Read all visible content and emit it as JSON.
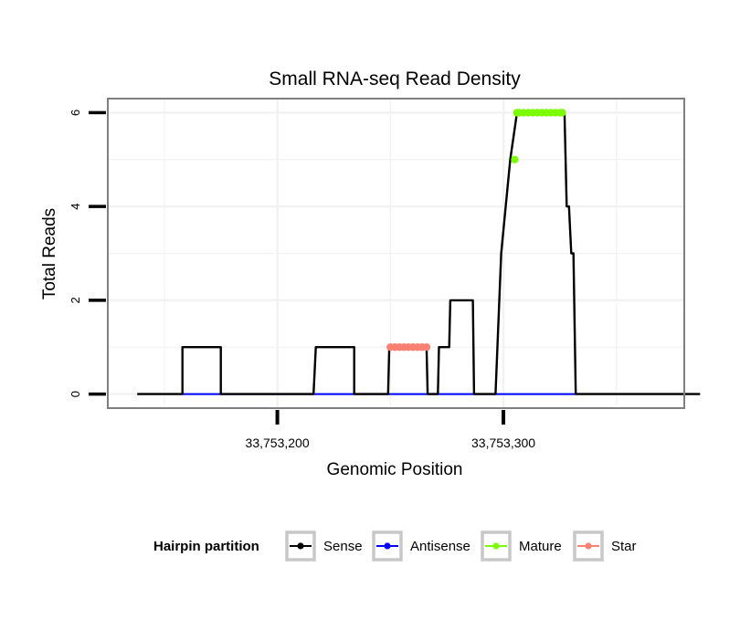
{
  "chart_data": {
    "type": "line",
    "title": "Small RNA-seq Read Density",
    "xlabel": "Genomic Position",
    "ylabel": "Total Reads",
    "xlim": [
      33753125,
      33753380
    ],
    "ylim": [
      -0.3,
      6.3
    ],
    "x_ticks": [
      33753200,
      33753300
    ],
    "x_tick_labels": [
      "33,753,200",
      "33,753,300"
    ],
    "y_ticks": [
      0,
      2,
      4,
      6
    ],
    "y_tick_labels": [
      "0",
      "2",
      "4",
      "6"
    ],
    "grid": true,
    "colors": {
      "Sense": "#000000",
      "Antisense": "#0000ff",
      "Mature": "#7cfc00",
      "Star": "#fa8072",
      "grid": "#f2f2f2",
      "border": "#7f7f7f"
    },
    "series": [
      {
        "name": "Sense",
        "style": "line",
        "x": [
          33753138,
          33753158,
          33753158,
          33753164,
          33753167,
          33753175,
          33753175,
          33753184,
          33753196,
          33753216,
          33753217,
          33753234,
          33753234,
          33753243,
          33753249,
          33753249.5,
          33753250,
          33753260,
          33753266,
          33753266.5,
          33753267,
          33753271,
          33753271.5,
          33753272,
          33753276,
          33753276.5,
          33753278,
          33753286,
          33753286.5,
          33753287,
          33753296,
          33753296.5,
          33753299,
          33753303,
          33753306,
          33753307,
          33753308,
          33753326,
          33753327,
          33753328,
          33753329,
          33753330,
          33753331,
          33753332,
          33753345,
          33753365,
          33753387
        ],
        "values": [
          0,
          0,
          1,
          1,
          1,
          1,
          0,
          0,
          0,
          0,
          1,
          1,
          0,
          0,
          0,
          1,
          1,
          1,
          1,
          0,
          0,
          0,
          1,
          1,
          1,
          2,
          2,
          2,
          2,
          0,
          0,
          0,
          3,
          5,
          6,
          6,
          6,
          6,
          6,
          4,
          4,
          3,
          3,
          0,
          0,
          0,
          0
        ]
      },
      {
        "name": "Antisense",
        "style": "line",
        "x": [
          33753158,
          33753332
        ],
        "values": [
          0,
          0
        ]
      },
      {
        "name": "Mature",
        "style": "points",
        "x": [
          33753305,
          33753306,
          33753307,
          33753309,
          33753311,
          33753313,
          33753315,
          33753317,
          33753319,
          33753321,
          33753323,
          33753325,
          33753326
        ],
        "values": [
          5,
          6,
          6,
          6,
          6,
          6,
          6,
          6,
          6,
          6,
          6,
          6,
          6
        ]
      },
      {
        "name": "Star",
        "style": "points",
        "x": [
          33753250,
          33753252,
          33753254,
          33753256,
          33753258,
          33753260,
          33753262,
          33753264,
          33753266
        ],
        "values": [
          1,
          1,
          1,
          1,
          1,
          1,
          1,
          1,
          1
        ]
      }
    ],
    "legend": {
      "title": "Hairpin partition",
      "position": "bottom",
      "items": [
        "Sense",
        "Antisense",
        "Mature",
        "Star"
      ]
    }
  }
}
